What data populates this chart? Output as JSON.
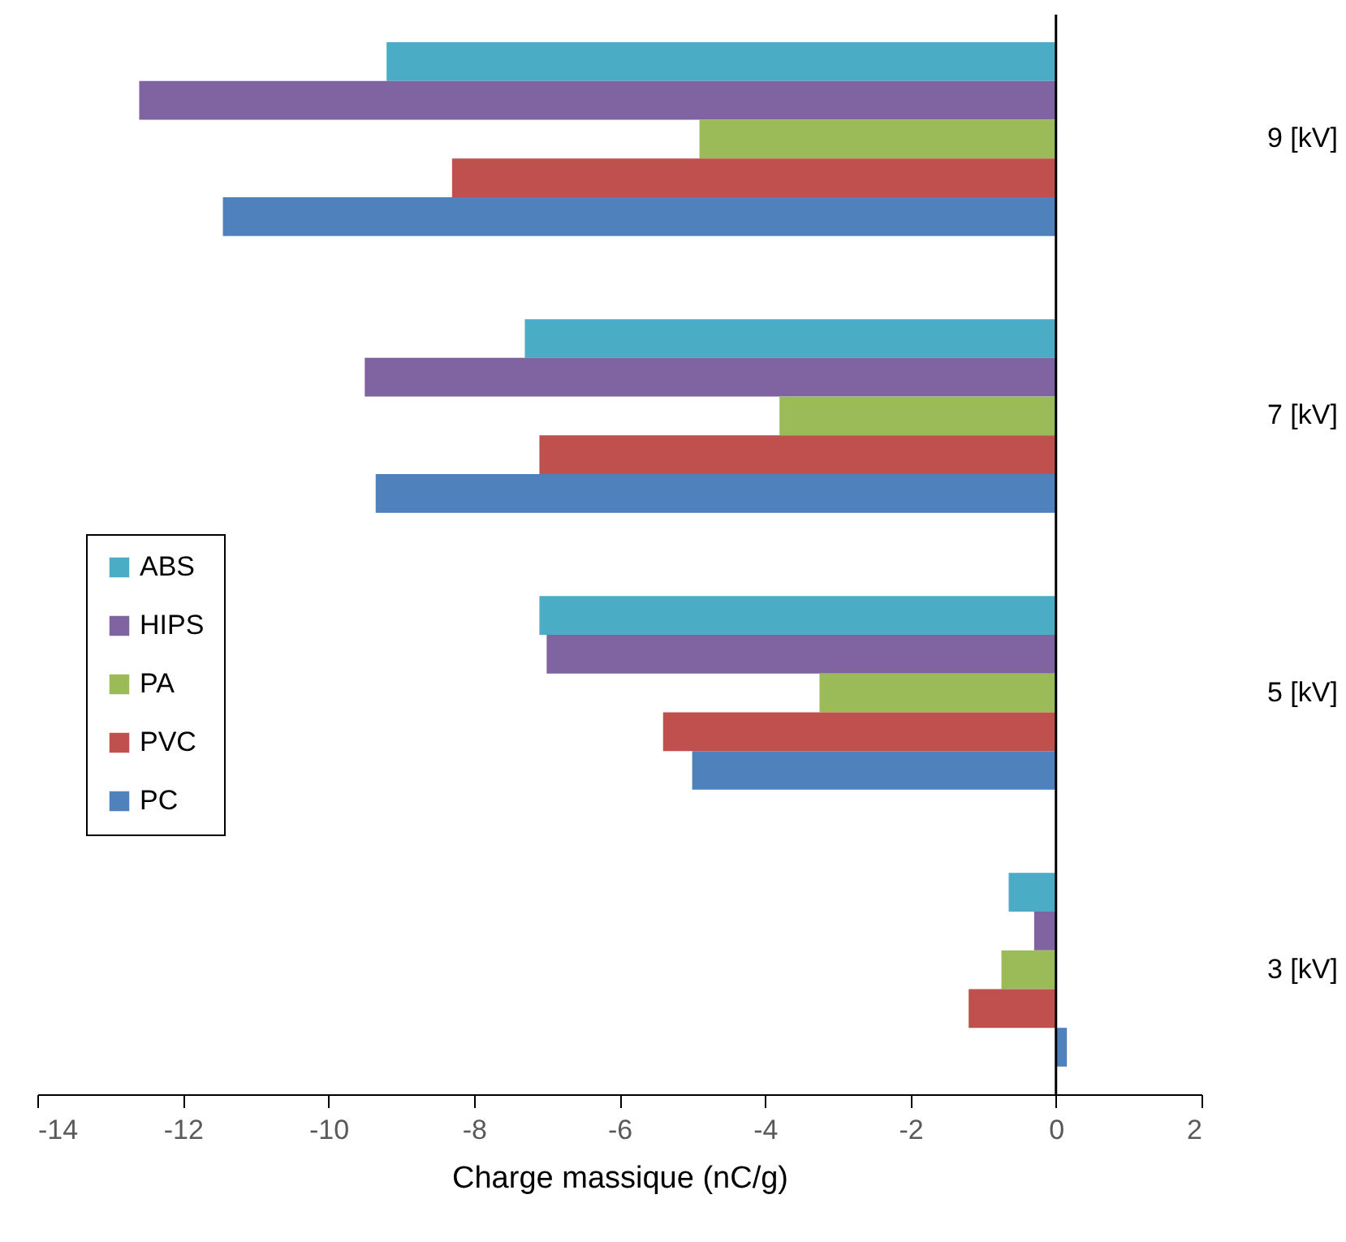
{
  "chart_data": {
    "type": "bar",
    "orientation": "horizontal",
    "xlabel": "Charge massique (nC/g)",
    "categories": [
      "9 [kV]",
      "7 [kV]",
      "5 [kV]",
      "3 [kV]"
    ],
    "series": [
      {
        "name": "ABS",
        "color": "#4bacc6",
        "values": [
          -9.2,
          -7.3,
          -7.1,
          -0.65
        ]
      },
      {
        "name": "HIPS",
        "color": "#8064a2",
        "values": [
          -12.6,
          -9.5,
          -7.0,
          -0.3
        ]
      },
      {
        "name": "PA",
        "color": "#9bbb59",
        "values": [
          -4.9,
          -3.8,
          -3.25,
          -0.75
        ]
      },
      {
        "name": "PVC",
        "color": "#c0504d",
        "values": [
          -8.3,
          -7.1,
          -5.4,
          -1.2
        ]
      },
      {
        "name": "PC",
        "color": "#4f81bd",
        "values": [
          -11.45,
          -9.35,
          -5.0,
          0.15
        ]
      }
    ],
    "xlim": [
      -14,
      2
    ],
    "xticks": [
      -14,
      -12,
      -10,
      -8,
      -6,
      -4,
      -2,
      0,
      2
    ],
    "legend": "left"
  }
}
